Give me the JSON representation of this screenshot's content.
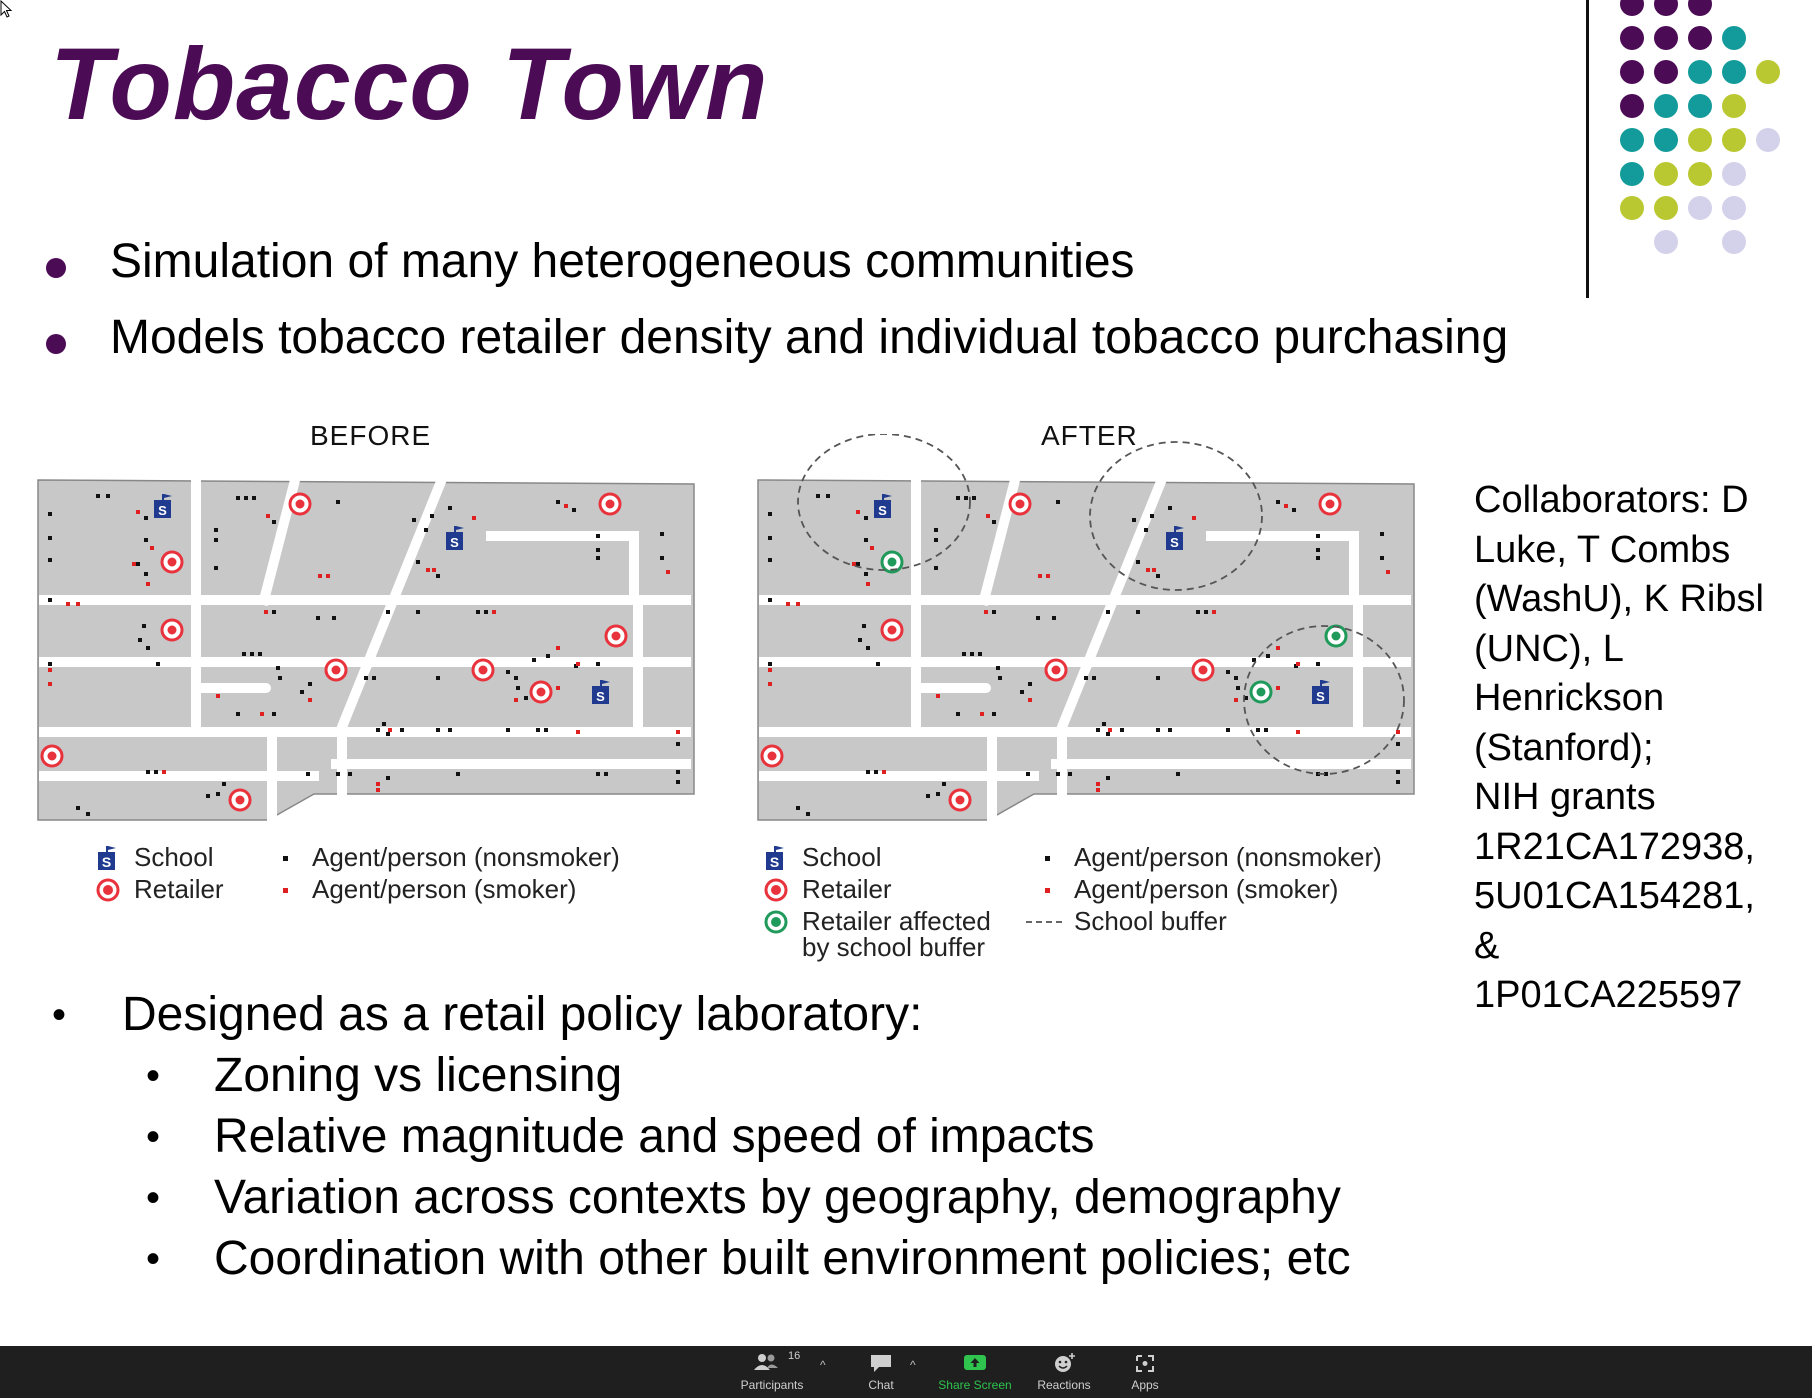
{
  "slide": {
    "title": "Tobacco Town",
    "top_bullets": [
      "Simulation of many heterogeneous communities",
      "Models tobacco retailer density and individual tobacco purchasing"
    ],
    "figure": {
      "before_label": "BEFORE",
      "after_label": "AFTER",
      "legend_before": {
        "school": "School",
        "retailer": "Retailer",
        "nonsmoker": "Agent/person (nonsmoker)",
        "smoker": "Agent/person (smoker)"
      },
      "legend_after": {
        "school": "School",
        "retailer": "Retailer",
        "affected_line1": "Retailer affected",
        "affected_line2": "by school buffer",
        "nonsmoker": "Agent/person (nonsmoker)",
        "smoker": "Agent/person (smoker)",
        "buffer": "School buffer"
      },
      "school_glyph": "S",
      "colors": {
        "retailer": "#e8323c",
        "affected_retailer": "#1f9a5a",
        "school": "#1f3a8f",
        "map_block": "#c8c8c8",
        "nonsmoker": "#111111",
        "smoker": "#e02020"
      }
    },
    "collaborators": [
      "Collaborators: D",
      "Luke, T Combs",
      "(WashU), K Ribsl",
      "(UNC), L",
      "Henrickson",
      "(Stanford);",
      "NIH grants",
      "1R21CA172938,",
      "5U01CA154281,",
      "&",
      "1P01CA225597"
    ],
    "bottom_bullets": {
      "main": "Designed as a retail policy laboratory:",
      "subs": [
        "Zoning vs licensing",
        "Relative magnitude and speed of impacts",
        "Variation across contexts by geography, demography",
        "Coordination with other built environment policies; etc"
      ]
    },
    "bullet_glyph": "•",
    "accent": "#4b0b55",
    "decor_colors": {
      "purple": "#4b0b55",
      "teal": "#129b9a",
      "lime": "#b9c730",
      "lavender": "#d4d1ea"
    }
  },
  "toolbar": {
    "participants_label": "Participants",
    "participants_count": "16",
    "participants_icon": "people-icon",
    "chat_label": "Chat",
    "chat_icon": "chat-bubble-icon",
    "share_label": "Share Screen",
    "share_icon": "share-screen-icon",
    "reactions_label": "Reactions",
    "reactions_icon": "smiley-icon",
    "apps_label": "Apps",
    "apps_icon": "apps-icon",
    "caret": "^",
    "share_color": "#2ec44e"
  }
}
